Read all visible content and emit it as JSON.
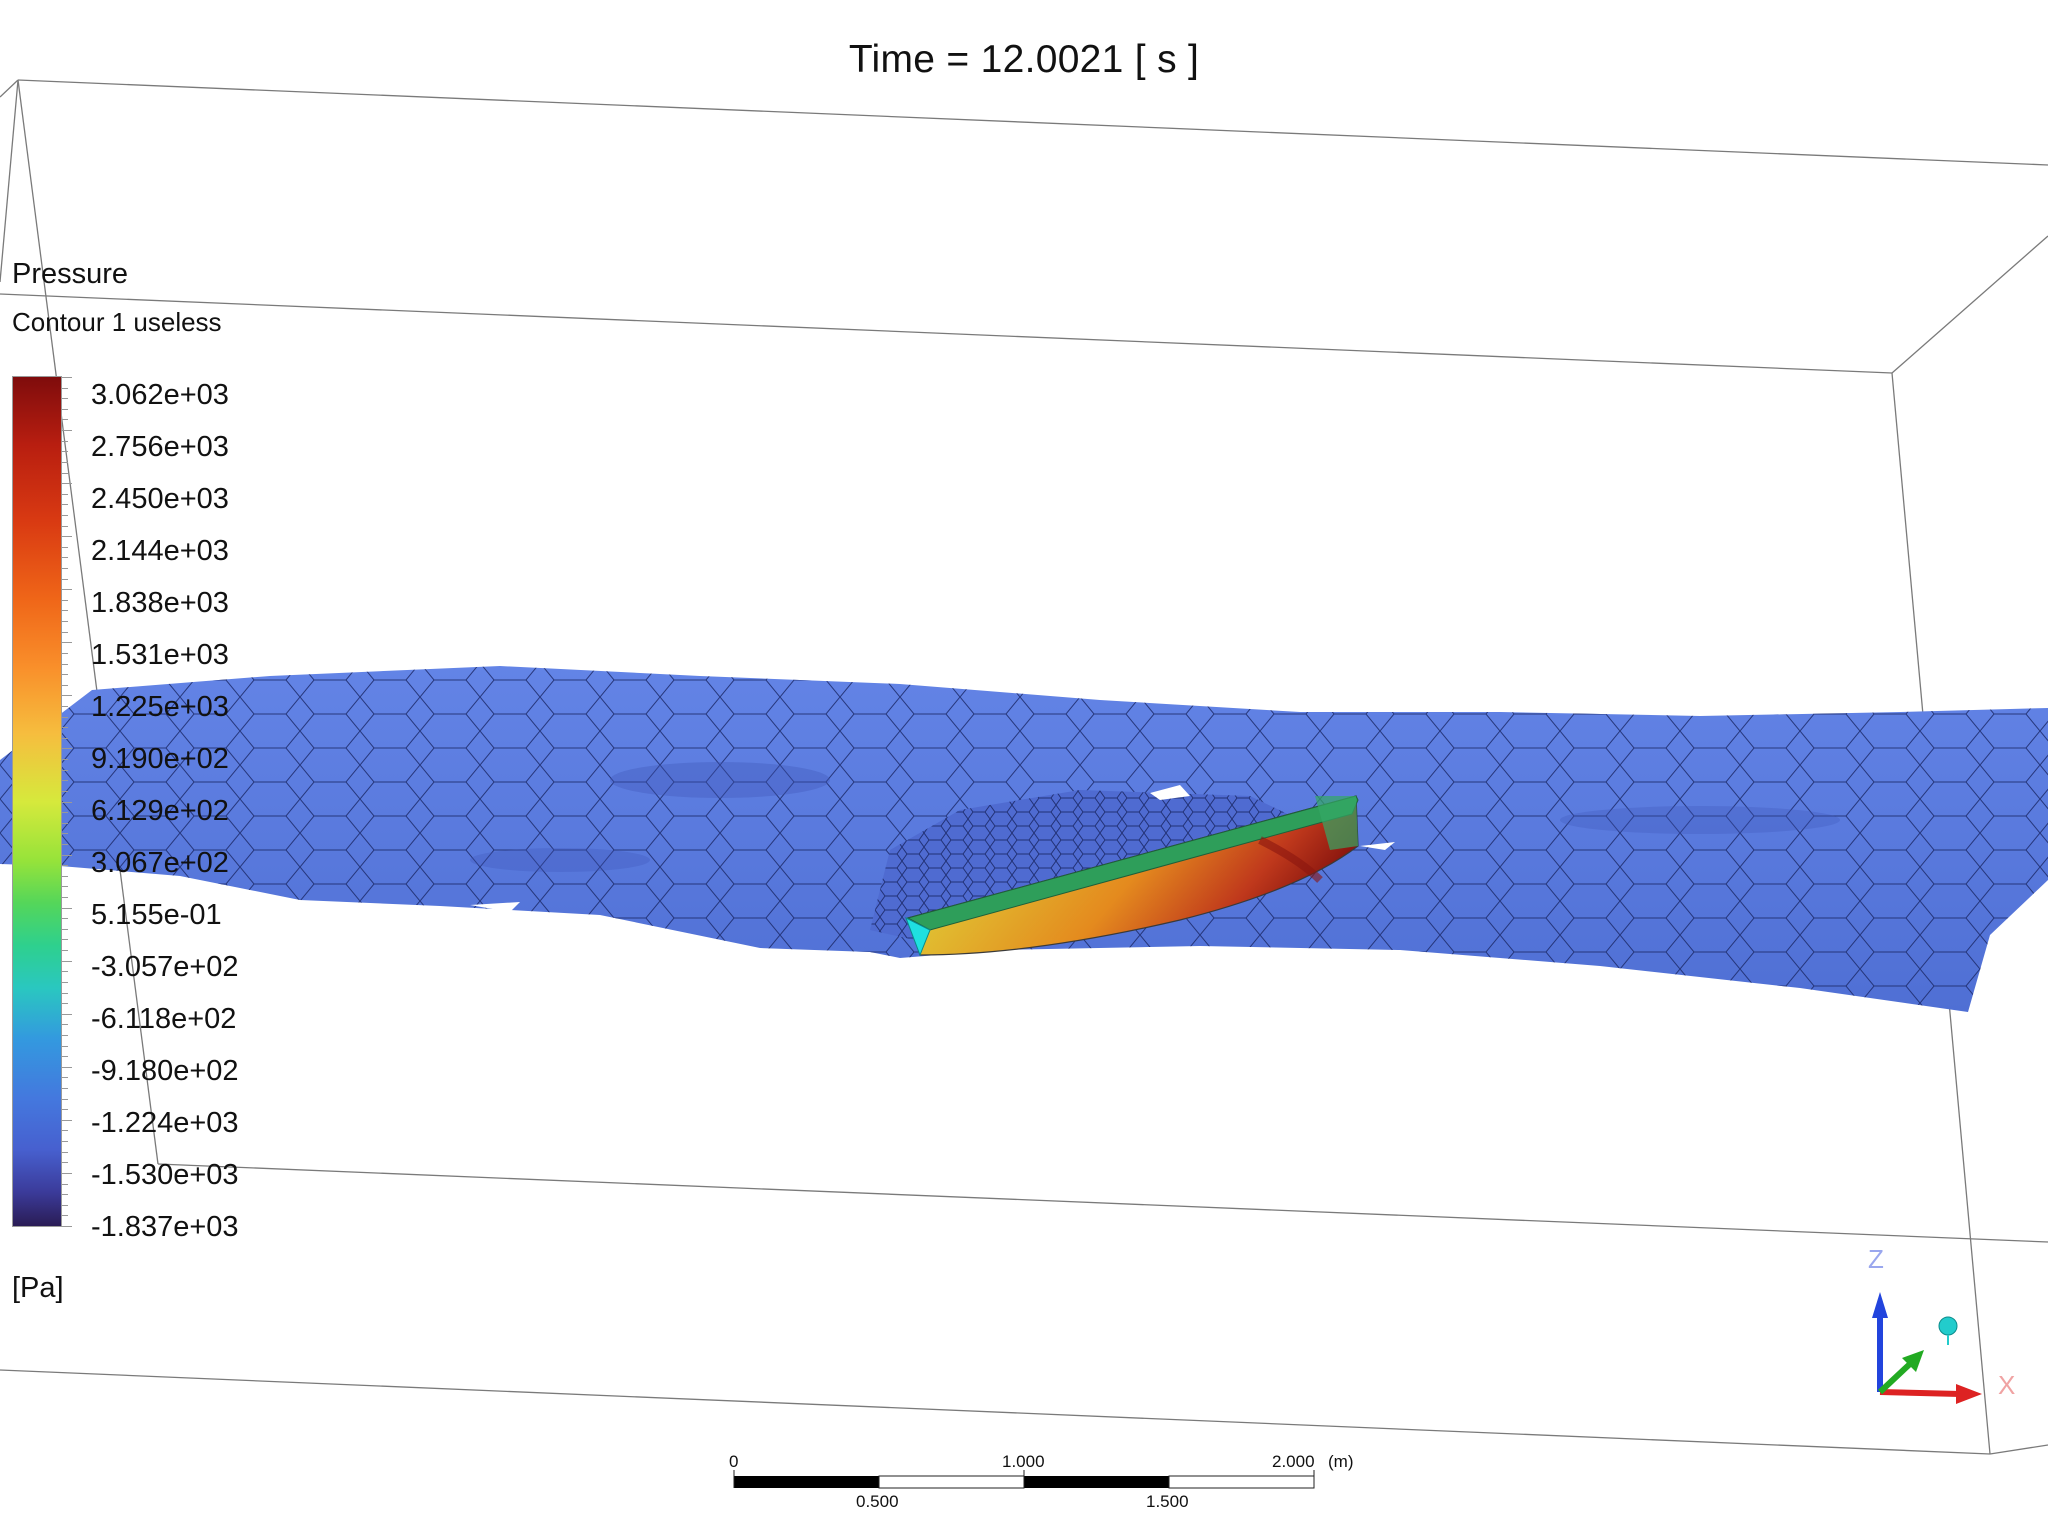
{
  "title": "Time = 12.0021 [ s ]",
  "legend": {
    "variable": "Pressure",
    "contour_name": "Contour 1 useless",
    "unit": "[Pa]",
    "range": [
      -1837,
      3062
    ],
    "labels": [
      "3.062e+03",
      "2.756e+03",
      "2.450e+03",
      "2.144e+03",
      "1.838e+03",
      "1.531e+03",
      "1.225e+03",
      "9.190e+02",
      "6.129e+02",
      "3.067e+02",
      "5.155e-01",
      "-3.057e+02",
      "-6.118e+02",
      "-9.180e+02",
      "-1.224e+03",
      "-1.530e+03",
      "-1.837e+03"
    ]
  },
  "scale_bar": {
    "unit": "(m)",
    "top_labels": [
      "0",
      "1.000",
      "2.000"
    ],
    "bottom_labels": [
      "0.500",
      "1.500"
    ]
  },
  "triad": {
    "axes": [
      "Z",
      "X",
      "Y"
    ],
    "colors": {
      "z": "#2244dd",
      "x": "#dd2222",
      "y": "#22aa22",
      "view": "#22cccc"
    }
  },
  "colors": {
    "water_surface": "#5b7ce0",
    "mesh_lines": "#1c2a66",
    "hull_deck": "#2e9e5a",
    "hull_bow": "#1fe0e0"
  }
}
